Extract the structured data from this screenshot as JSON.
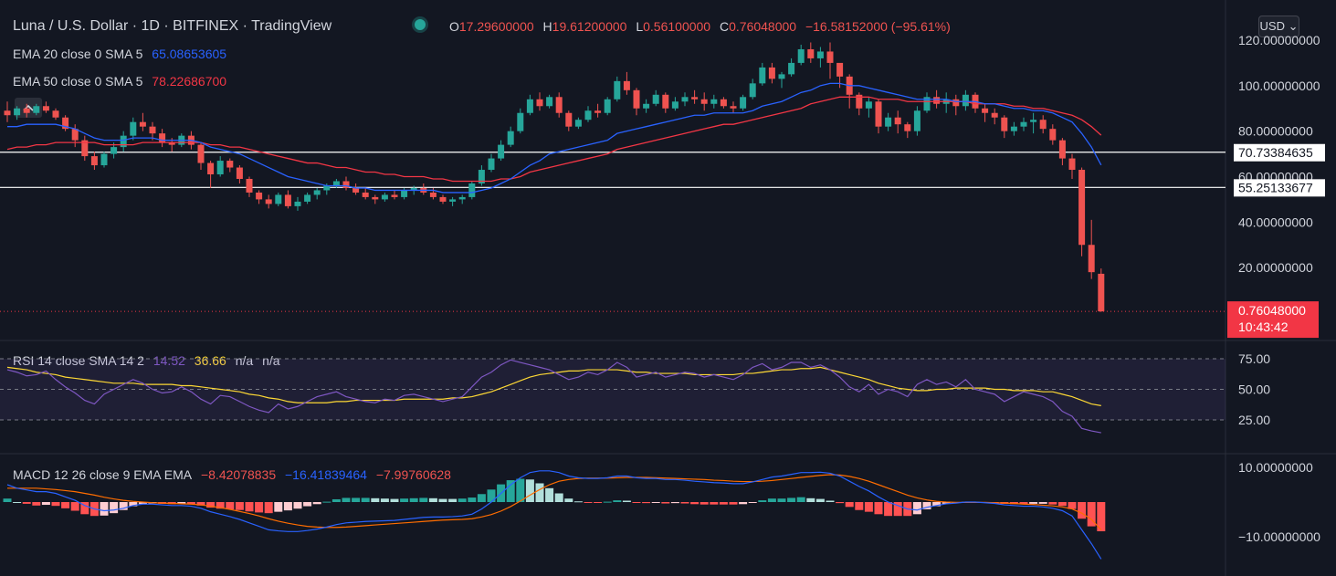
{
  "header": {
    "title": "Luna / U.S. Dollar · 1D · BITFINEX · TradingView",
    "ohlc": [
      {
        "key": "O",
        "value": "17.29600000"
      },
      {
        "key": "H",
        "value": "19.61200000"
      },
      {
        "key": "L",
        "value": "0.56100000"
      },
      {
        "key": "C",
        "value": "0.76048000"
      }
    ],
    "change": "−16.58152000 (−95.61%)",
    "currency_button": "USD ⌄"
  },
  "indicators": {
    "ema20": {
      "label": "EMA 20 close 0 SMA 5",
      "value": "65.08653605",
      "color": "#2962ff"
    },
    "ema50": {
      "label": "EMA 50 close 0 SMA 5",
      "value": "78.22686700",
      "color": "#f23645"
    },
    "rsi": {
      "label": "RSI 14 close SMA 14 2",
      "value": "14.52",
      "sma": "36.66",
      "na1": "n/a",
      "na2": "n/a"
    },
    "macd": {
      "label": "MACD 12 26 close 9 EMA EMA",
      "hist": "−8.42078835",
      "macd": "−16.41839464",
      "signal": "−7.99760628"
    }
  },
  "price_axis": {
    "ticks": [
      "120.00000000",
      "100.00000000",
      "80.00000000",
      "60.00000000",
      "40.00000000",
      "20.00000000"
    ],
    "hlines": [
      {
        "label": "70.73384635",
        "price": 70.73384635
      },
      {
        "label": "55.25133677",
        "price": 55.25133677
      }
    ],
    "last_price": {
      "label": "0.76048000",
      "countdown": "10:43:42",
      "color": "#f23645"
    }
  },
  "rsi_axis": {
    "ticks": [
      "75.00",
      "50.00",
      "25.00"
    ]
  },
  "macd_axis": {
    "ticks": [
      "10.00000000",
      "−10.00000000"
    ]
  },
  "colors": {
    "up": "#26a69a",
    "down": "#ef5350",
    "bg": "#131722",
    "ema20": "#2962ff",
    "ema50": "#f23645",
    "rsi": "#7e57c2",
    "rsi_sma": "#fdd835"
  },
  "chart_data": {
    "type": "candlestick",
    "symbol": "Luna / U.S. Dollar",
    "interval": "1D",
    "ylim": [
      0,
      120
    ],
    "candles": [
      [
        89,
        93,
        84,
        87
      ],
      [
        87,
        91,
        85,
        90
      ],
      [
        90,
        92,
        86,
        88
      ],
      [
        88,
        92,
        87,
        91
      ],
      [
        91,
        93,
        88,
        89
      ],
      [
        89,
        90,
        85,
        86
      ],
      [
        86,
        87,
        80,
        81
      ],
      [
        81,
        83,
        73,
        76
      ],
      [
        76,
        78,
        67,
        69
      ],
      [
        69,
        71,
        63,
        65
      ],
      [
        65,
        71,
        64,
        70
      ],
      [
        70,
        75,
        68,
        73
      ],
      [
        73,
        80,
        71,
        78
      ],
      [
        78,
        86,
        76,
        84
      ],
      [
        84,
        88,
        80,
        82
      ],
      [
        82,
        84,
        76,
        79
      ],
      [
        79,
        81,
        73,
        75
      ],
      [
        75,
        77,
        71,
        74
      ],
      [
        74,
        79,
        73,
        78
      ],
      [
        78,
        80,
        72,
        74
      ],
      [
        74,
        75,
        63,
        66
      ],
      [
        66,
        67,
        55,
        61
      ],
      [
        61,
        69,
        60,
        67
      ],
      [
        67,
        68,
        62,
        64
      ],
      [
        64,
        65,
        57,
        59
      ],
      [
        59,
        60,
        51,
        53
      ],
      [
        53,
        54,
        48,
        50
      ],
      [
        50,
        52,
        46,
        48
      ],
      [
        48,
        53,
        47,
        52
      ],
      [
        52,
        54,
        46,
        47
      ],
      [
        47,
        51,
        45,
        49
      ],
      [
        49,
        53,
        48,
        52
      ],
      [
        52,
        55,
        50,
        54
      ],
      [
        54,
        57,
        52,
        56
      ],
      [
        56,
        59,
        55,
        58
      ],
      [
        58,
        60,
        54,
        55
      ],
      [
        55,
        57,
        52,
        53
      ],
      [
        53,
        55,
        50,
        51
      ],
      [
        51,
        52,
        48,
        50
      ],
      [
        50,
        53,
        49,
        52
      ],
      [
        52,
        54,
        50,
        51
      ],
      [
        51,
        55,
        50,
        54
      ],
      [
        54,
        56,
        52,
        55
      ],
      [
        55,
        57,
        52,
        53
      ],
      [
        53,
        55,
        50,
        51
      ],
      [
        51,
        52,
        48,
        49
      ],
      [
        49,
        51,
        47,
        50
      ],
      [
        50,
        52,
        48,
        51
      ],
      [
        51,
        58,
        50,
        57
      ],
      [
        57,
        65,
        56,
        63
      ],
      [
        63,
        70,
        62,
        68
      ],
      [
        68,
        76,
        67,
        74
      ],
      [
        74,
        82,
        73,
        80
      ],
      [
        80,
        90,
        79,
        88
      ],
      [
        88,
        96,
        87,
        94
      ],
      [
        94,
        97,
        89,
        91
      ],
      [
        91,
        96,
        90,
        95
      ],
      [
        95,
        97,
        86,
        88
      ],
      [
        88,
        89,
        80,
        82
      ],
      [
        82,
        86,
        81,
        85
      ],
      [
        85,
        91,
        84,
        89
      ],
      [
        89,
        92,
        86,
        88
      ],
      [
        88,
        95,
        87,
        94
      ],
      [
        94,
        104,
        93,
        102
      ],
      [
        102,
        106,
        96,
        98
      ],
      [
        98,
        99,
        87,
        90
      ],
      [
        90,
        94,
        88,
        92
      ],
      [
        92,
        98,
        91,
        96
      ],
      [
        96,
        97,
        88,
        90
      ],
      [
        90,
        95,
        89,
        93
      ],
      [
        93,
        97,
        91,
        95
      ],
      [
        95,
        98,
        92,
        94
      ],
      [
        94,
        97,
        89,
        92
      ],
      [
        92,
        96,
        90,
        94
      ],
      [
        94,
        95,
        90,
        91
      ],
      [
        91,
        93,
        88,
        90
      ],
      [
        90,
        96,
        89,
        95
      ],
      [
        95,
        103,
        94,
        101
      ],
      [
        101,
        110,
        100,
        108
      ],
      [
        108,
        110,
        101,
        103
      ],
      [
        103,
        106,
        99,
        105
      ],
      [
        105,
        112,
        104,
        110
      ],
      [
        110,
        118,
        109,
        116
      ],
      [
        116,
        119,
        110,
        112
      ],
      [
        112,
        117,
        108,
        115
      ],
      [
        115,
        119,
        103,
        110
      ],
      [
        110,
        109,
        99,
        104
      ],
      [
        104,
        105,
        90,
        96
      ],
      [
        96,
        97,
        87,
        90
      ],
      [
        90,
        95,
        86,
        93
      ],
      [
        93,
        94,
        79,
        82
      ],
      [
        82,
        88,
        80,
        86
      ],
      [
        86,
        89,
        79,
        83
      ],
      [
        83,
        84,
        77,
        80
      ],
      [
        80,
        91,
        78,
        89
      ],
      [
        89,
        97,
        88,
        95
      ],
      [
        95,
        98,
        90,
        92
      ],
      [
        92,
        97,
        88,
        94
      ],
      [
        94,
        96,
        87,
        91
      ],
      [
        91,
        98,
        89,
        96
      ],
      [
        96,
        97,
        88,
        90
      ],
      [
        90,
        92,
        84,
        88
      ],
      [
        88,
        90,
        83,
        86
      ],
      [
        86,
        87,
        77,
        80
      ],
      [
        80,
        84,
        78,
        82
      ],
      [
        82,
        86,
        80,
        84
      ],
      [
        84,
        88,
        79,
        85
      ],
      [
        85,
        87,
        79,
        81
      ],
      [
        81,
        83,
        74,
        76
      ],
      [
        76,
        77,
        65,
        68
      ],
      [
        68,
        70,
        59,
        63
      ],
      [
        63,
        64,
        25,
        30
      ],
      [
        30,
        41,
        15,
        18
      ],
      [
        17.296,
        19.612,
        0.561,
        0.76048
      ]
    ],
    "ema20": [
      82,
      82,
      83,
      83,
      83,
      83,
      82,
      81,
      79,
      77,
      76,
      76,
      76,
      77,
      77,
      77,
      76,
      76,
      76,
      76,
      75,
      73,
      72,
      71,
      70,
      68,
      66,
      64,
      62,
      60,
      59,
      58,
      57,
      56,
      56,
      56,
      55,
      55,
      54,
      54,
      54,
      54,
      54,
      54,
      54,
      53,
      53,
      53,
      53,
      54,
      55,
      57,
      59,
      62,
      65,
      67,
      70,
      71,
      72,
      73,
      74,
      75,
      76,
      79,
      80,
      81,
      82,
      83,
      84,
      85,
      86,
      87,
      87,
      88,
      88,
      88,
      88,
      89,
      91,
      92,
      93,
      95,
      97,
      98,
      100,
      101,
      101,
      100,
      100,
      99,
      98,
      97,
      96,
      95,
      94,
      94,
      94,
      94,
      93,
      93,
      93,
      92,
      92,
      91,
      90,
      90,
      89,
      89,
      88,
      86,
      84,
      79,
      73,
      65.087
    ],
    "ema50": [
      72,
      73,
      73,
      74,
      74,
      75,
      75,
      75,
      75,
      75,
      74,
      74,
      74,
      74,
      75,
      75,
      75,
      75,
      75,
      75,
      75,
      74,
      74,
      73,
      73,
      72,
      71,
      70,
      69,
      68,
      67,
      66,
      66,
      65,
      64,
      64,
      63,
      62,
      62,
      61,
      61,
      60,
      60,
      60,
      59,
      59,
      58,
      58,
      58,
      58,
      58,
      59,
      59,
      60,
      62,
      63,
      64,
      65,
      66,
      67,
      68,
      69,
      70,
      72,
      73,
      74,
      75,
      76,
      77,
      78,
      79,
      80,
      81,
      82,
      83,
      83,
      84,
      85,
      86,
      87,
      88,
      89,
      90,
      92,
      93,
      94,
      95,
      95,
      95,
      95,
      94,
      94,
      94,
      93,
      93,
      93,
      93,
      93,
      93,
      93,
      92,
      92,
      92,
      92,
      91,
      91,
      90,
      90,
      89,
      88,
      87,
      85,
      82,
      78.227
    ],
    "rsi": [
      66,
      64,
      61,
      62,
      65,
      58,
      52,
      47,
      41,
      38,
      46,
      50,
      54,
      58,
      55,
      50,
      47,
      48,
      52,
      48,
      42,
      38,
      45,
      44,
      40,
      36,
      33,
      31,
      38,
      34,
      36,
      40,
      44,
      46,
      48,
      44,
      42,
      40,
      39,
      42,
      41,
      45,
      46,
      44,
      42,
      40,
      42,
      44,
      52,
      60,
      64,
      70,
      74,
      72,
      70,
      68,
      66,
      62,
      58,
      60,
      64,
      62,
      66,
      72,
      68,
      60,
      62,
      64,
      60,
      62,
      64,
      63,
      60,
      62,
      60,
      58,
      62,
      68,
      71,
      66,
      68,
      72,
      72,
      68,
      70,
      66,
      60,
      52,
      48,
      54,
      46,
      50,
      48,
      44,
      54,
      58,
      54,
      56,
      52,
      58,
      50,
      48,
      46,
      40,
      44,
      48,
      46,
      44,
      40,
      32,
      28,
      18,
      16,
      14.52
    ],
    "rsi_sma": [
      68,
      67,
      66,
      64,
      63,
      62,
      60,
      59,
      58,
      57,
      56,
      55,
      55,
      55,
      54,
      54,
      54,
      54,
      53,
      53,
      52,
      51,
      50,
      49,
      48,
      46,
      45,
      43,
      42,
      40,
      39,
      39,
      39,
      39,
      40,
      40,
      41,
      41,
      41,
      41,
      41,
      42,
      42,
      42,
      42,
      42,
      43,
      43,
      44,
      46,
      48,
      51,
      54,
      57,
      60,
      62,
      63,
      64,
      65,
      65,
      66,
      66,
      66,
      66,
      65,
      64,
      64,
      63,
      63,
      63,
      63,
      62,
      62,
      62,
      62,
      62,
      63,
      63,
      64,
      65,
      66,
      66,
      67,
      67,
      68,
      66,
      64,
      62,
      60,
      58,
      55,
      53,
      51,
      50,
      49,
      49,
      50,
      50,
      51,
      51,
      51,
      51,
      50,
      50,
      49,
      49,
      49,
      48,
      48,
      46,
      44,
      41,
      38,
      36.66
    ],
    "macd": [
      5,
      4,
      3.5,
      3,
      3,
      2.5,
      1.5,
      0.5,
      -1,
      -2,
      -2.5,
      -2.3,
      -1.8,
      -1,
      -0.6,
      -0.6,
      -0.8,
      -1,
      -1,
      -1.2,
      -1.8,
      -2.8,
      -3.5,
      -4.2,
      -5,
      -6,
      -7,
      -8,
      -8.3,
      -8.5,
      -8.5,
      -8.2,
      -7.8,
      -7.2,
      -6.5,
      -6,
      -5.8,
      -5.6,
      -5.5,
      -5.4,
      -5.3,
      -5,
      -4.7,
      -4.4,
      -4.3,
      -4.3,
      -4.2,
      -4,
      -3.5,
      -2,
      0,
      2.5,
      5,
      7,
      8.5,
      9,
      9,
      8.5,
      7.5,
      7,
      6.8,
      6.8,
      7,
      7.5,
      7.5,
      7,
      6.8,
      6.8,
      6.5,
      6.5,
      6.3,
      6,
      5.8,
      5.6,
      5.5,
      5.3,
      5.3,
      5.8,
      6.5,
      7.2,
      7.5,
      8,
      8.5,
      8.5,
      8.6,
      8.3,
      7.5,
      6,
      4.5,
      3.2,
      1.5,
      0,
      -1,
      -2,
      -2.3,
      -1.5,
      -1,
      -0.5,
      -0.3,
      0,
      0,
      -0.2,
      -0.4,
      -0.8,
      -1,
      -1.2,
      -1.2,
      -1.4,
      -1.8,
      -2.5,
      -4,
      -8,
      -12,
      -16.418
    ],
    "signal": [
      4,
      4,
      4,
      4,
      3.8,
      3.6,
      3.3,
      3,
      2.5,
      2,
      1.4,
      0.9,
      0.5,
      0.2,
      0,
      -0.2,
      -0.3,
      -0.4,
      -0.5,
      -0.6,
      -0.8,
      -1.2,
      -1.6,
      -2.1,
      -2.7,
      -3.3,
      -4,
      -4.8,
      -5.5,
      -6.1,
      -6.6,
      -7,
      -7.2,
      -7.3,
      -7.3,
      -7.2,
      -7,
      -6.8,
      -6.6,
      -6.4,
      -6.2,
      -6,
      -5.8,
      -5.6,
      -5.4,
      -5.2,
      -5.1,
      -5,
      -4.8,
      -4.3,
      -3.6,
      -2.6,
      -1.3,
      0.3,
      2,
      3.6,
      5,
      6,
      6.5,
      6.8,
      6.9,
      6.9,
      6.9,
      7,
      7.1,
      7.1,
      7.1,
      7,
      6.9,
      6.8,
      6.7,
      6.6,
      6.5,
      6.3,
      6.2,
      6,
      5.9,
      5.9,
      6,
      6.2,
      6.5,
      6.8,
      7.1,
      7.4,
      7.7,
      7.9,
      7.8,
      7.4,
      6.8,
      6,
      5,
      4,
      3,
      2,
      1.2,
      0.6,
      0.2,
      0,
      -0.1,
      -0.1,
      -0.1,
      -0.1,
      -0.2,
      -0.3,
      -0.4,
      -0.6,
      -0.7,
      -0.9,
      -1.1,
      -1.4,
      -2,
      -3.2,
      -5,
      -7.998
    ]
  }
}
